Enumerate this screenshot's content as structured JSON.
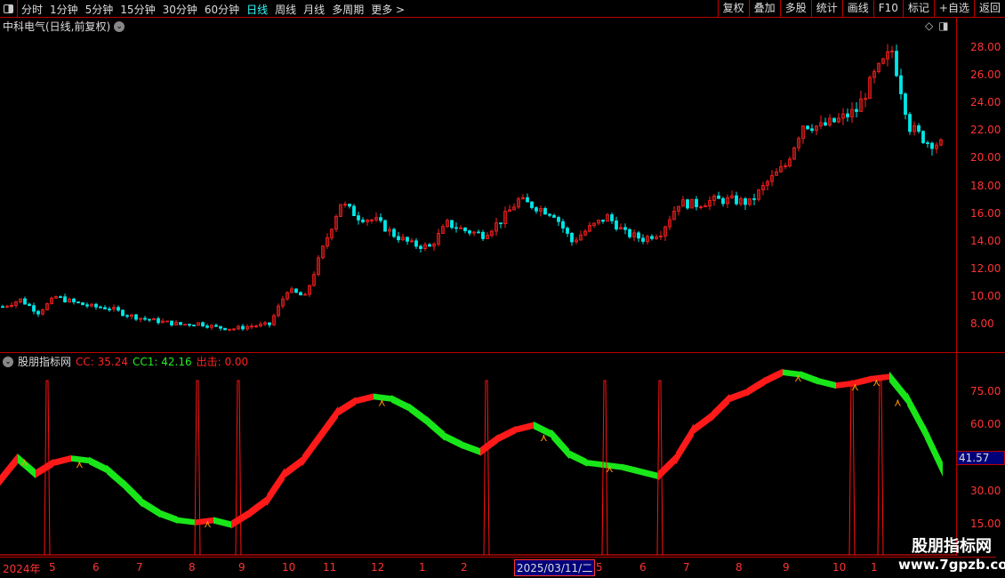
{
  "toolbar": {
    "periods": [
      "分时",
      "1分钟",
      "5分钟",
      "15分钟",
      "30分钟",
      "60分钟",
      "日线",
      "周线",
      "月线",
      "多周期",
      "更多 >"
    ],
    "active_period": "日线",
    "actions": [
      "复权",
      "叠加",
      "多股",
      "统计",
      "画线",
      "F10",
      "标记",
      "+自选",
      "返回"
    ]
  },
  "main": {
    "title": "中科电气(日线,前复权)",
    "y_ticks": [
      "28.00",
      "26.00",
      "24.00",
      "22.00",
      "20.00",
      "18.00",
      "16.00",
      "14.00",
      "12.00",
      "10.00",
      "8.00"
    ]
  },
  "indicator": {
    "name": "股朋指标网",
    "cc": "CC: 35.24",
    "cc1": "CC1: 42.16",
    "chuji": "出击: 0.00",
    "current_value": "41.57",
    "y_ticks": [
      "75.00",
      "60.00",
      "45.00",
      "30.00",
      "15.00"
    ]
  },
  "xaxis": {
    "labels": [
      "2024年",
      "5",
      "6",
      "7",
      "8",
      "9",
      "10",
      "11",
      "12",
      "1",
      "2",
      "3",
      "2025/03/11/二",
      "5",
      "6",
      "7",
      "8",
      "9",
      "10",
      "1"
    ]
  },
  "watermark": {
    "line1": "股朋指标网",
    "line2": "www.7gpzb.com"
  },
  "colors": {
    "up": "#ff2020",
    "down": "#00e8e8",
    "band_up": "#ff1a1a",
    "band_down": "#19e619",
    "axis": "#bb0000",
    "active": "#33ffff"
  },
  "chart_data": [
    {
      "type": "candlestick",
      "ylim": [
        7,
        29
      ],
      "close": [
        9.3,
        9.8,
        8.9,
        10.0,
        9.6,
        9.3,
        9.2,
        8.7,
        8.4,
        8.2,
        8.0,
        8.1,
        7.8,
        7.7,
        7.9,
        8.0,
        10.5,
        10.0,
        13.5,
        16.8,
        15.8,
        15.5,
        14.5,
        13.8,
        13.6,
        15.3,
        14.8,
        14.5,
        15.5,
        17.0,
        16.5,
        16.0,
        14.0,
        15.0,
        15.8,
        14.6,
        14.2,
        14.7,
        16.8,
        16.7,
        17.0,
        17.0,
        16.8,
        18.3,
        19.5,
        22.5,
        22.3,
        22.8,
        23.5,
        26.0,
        27.8,
        22.3,
        21.2,
        21.0
      ]
    },
    {
      "type": "line",
      "ylim": [
        8,
        90
      ],
      "series": [
        {
          "name": "CC",
          "values": [
            35,
            45,
            38,
            43,
            45,
            44,
            40,
            33,
            25,
            20,
            17,
            16,
            17,
            15,
            20,
            26,
            38,
            44,
            55,
            66,
            71,
            73,
            72,
            68,
            62,
            55,
            51,
            48,
            54,
            58,
            60,
            56,
            47,
            43,
            42,
            41,
            39,
            37,
            45,
            58,
            64,
            72,
            75,
            80,
            84,
            83,
            80,
            78,
            79,
            81,
            82,
            72,
            57,
            40
          ]
        }
      ],
      "signals": [
        2.65,
        11.1,
        13.4,
        27.35,
        34,
        37.1,
        47.9,
        49.5
      ]
    }
  ]
}
